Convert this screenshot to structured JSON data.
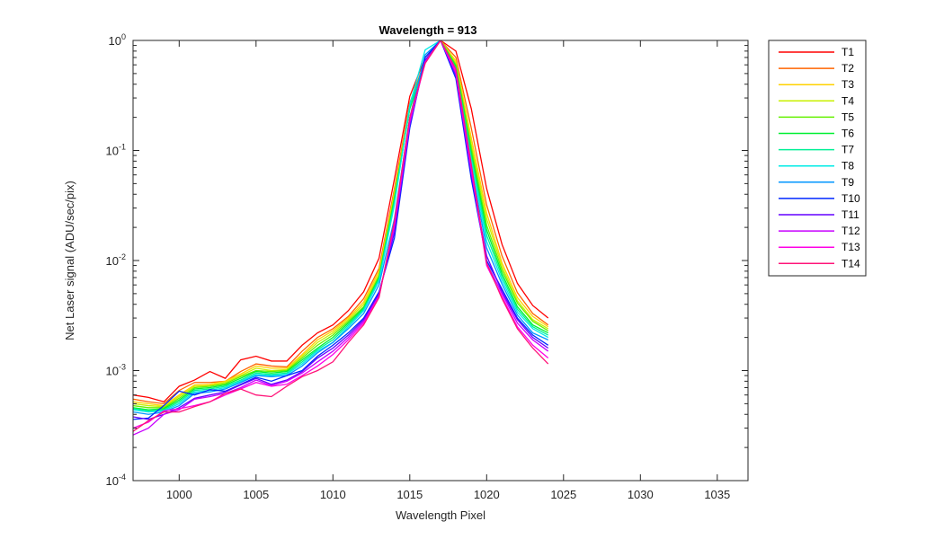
{
  "chart_data": {
    "type": "line",
    "title": "Wavelength = 913",
    "xlabel": "Wavelength Pixel",
    "ylabel": "Net Laser signal  (ADU/sec/pix)",
    "xlim": [
      997,
      1037
    ],
    "ylim": [
      0.0001,
      1
    ],
    "yscale": "log",
    "x_ticks": [
      1000,
      1005,
      1010,
      1015,
      1020,
      1025,
      1030,
      1035
    ],
    "y_ticks": [
      {
        "value": 0.0001,
        "base": "10",
        "exp": "-4"
      },
      {
        "value": 0.001,
        "base": "10",
        "exp": "-3"
      },
      {
        "value": 0.01,
        "base": "10",
        "exp": "-2"
      },
      {
        "value": 0.1,
        "base": "10",
        "exp": "-1"
      },
      {
        "value": 1,
        "base": "10",
        "exp": "0"
      }
    ],
    "grid": false,
    "legend_position": "outside-top-right",
    "x": [
      997,
      998,
      999,
      1000,
      1001,
      1002,
      1003,
      1004,
      1005,
      1006,
      1007,
      1008,
      1009,
      1010,
      1011,
      1012,
      1013,
      1014,
      1015,
      1016,
      1017,
      1018,
      1019,
      1020,
      1021,
      1022,
      1023,
      1024
    ],
    "series": [
      {
        "name": "T1",
        "color": "#ff0000",
        "values": [
          0.0006,
          0.00057,
          0.00052,
          0.00072,
          0.00082,
          0.00098,
          0.00085,
          0.00125,
          0.00135,
          0.00122,
          0.00122,
          0.0017,
          0.0022,
          0.0026,
          0.0035,
          0.0052,
          0.0105,
          0.055,
          0.31,
          0.7,
          1.0,
          0.8,
          0.24,
          0.045,
          0.014,
          0.0062,
          0.0039,
          0.003
        ]
      },
      {
        "name": "T2",
        "color": "#ff6400",
        "values": [
          0.00055,
          0.00052,
          0.0005,
          0.00066,
          0.00078,
          0.00078,
          0.0008,
          0.00098,
          0.00115,
          0.0011,
          0.00108,
          0.0015,
          0.002,
          0.0024,
          0.0031,
          0.0045,
          0.0085,
          0.045,
          0.27,
          0.66,
          1.0,
          0.7,
          0.16,
          0.032,
          0.011,
          0.0051,
          0.0033,
          0.0026
        ]
      },
      {
        "name": "T3",
        "color": "#ffd200",
        "values": [
          0.00052,
          0.0005,
          0.00048,
          0.0006,
          0.00074,
          0.00075,
          0.0008,
          0.00093,
          0.0011,
          0.00105,
          0.00105,
          0.0014,
          0.0019,
          0.0023,
          0.003,
          0.0042,
          0.008,
          0.042,
          0.25,
          0.64,
          1.0,
          0.65,
          0.13,
          0.027,
          0.0095,
          0.0046,
          0.0031,
          0.0025
        ]
      },
      {
        "name": "T4",
        "color": "#c8f000",
        "values": [
          0.0005,
          0.00048,
          0.00047,
          0.00058,
          0.00072,
          0.00073,
          0.00078,
          0.0009,
          0.00105,
          0.001,
          0.00102,
          0.00135,
          0.0018,
          0.0022,
          0.0029,
          0.004,
          0.0075,
          0.04,
          0.24,
          0.63,
          1.0,
          0.62,
          0.115,
          0.024,
          0.0088,
          0.0043,
          0.0029,
          0.0024
        ]
      },
      {
        "name": "T5",
        "color": "#64f000",
        "values": [
          0.00048,
          0.00046,
          0.00046,
          0.00056,
          0.0007,
          0.00072,
          0.00076,
          0.00088,
          0.001,
          0.00098,
          0.001,
          0.0013,
          0.0017,
          0.0021,
          0.0028,
          0.0038,
          0.0072,
          0.038,
          0.24,
          0.63,
          1.0,
          0.6,
          0.105,
          0.021,
          0.0082,
          0.0041,
          0.0028,
          0.0023
        ]
      },
      {
        "name": "T6",
        "color": "#00f032",
        "values": [
          0.00046,
          0.00044,
          0.00045,
          0.00054,
          0.00068,
          0.0007,
          0.00074,
          0.00085,
          0.00098,
          0.00095,
          0.00098,
          0.00125,
          0.0016,
          0.002,
          0.0027,
          0.0037,
          0.007,
          0.036,
          0.24,
          0.64,
          1.0,
          0.58,
          0.095,
          0.019,
          0.0076,
          0.0038,
          0.0026,
          0.0022
        ]
      },
      {
        "name": "T7",
        "color": "#00f096",
        "values": [
          0.00045,
          0.00043,
          0.00044,
          0.00052,
          0.00066,
          0.00068,
          0.00072,
          0.00082,
          0.00095,
          0.00092,
          0.00095,
          0.0012,
          0.00155,
          0.0019,
          0.0026,
          0.0036,
          0.0068,
          0.034,
          0.25,
          0.66,
          1.0,
          0.56,
          0.088,
          0.017,
          0.0071,
          0.0036,
          0.0025,
          0.0021
        ]
      },
      {
        "name": "T8",
        "color": "#00ebe6",
        "values": [
          0.00044,
          0.00042,
          0.00043,
          0.0005,
          0.00064,
          0.00066,
          0.0007,
          0.0008,
          0.00092,
          0.0009,
          0.00093,
          0.00115,
          0.0015,
          0.0018,
          0.0025,
          0.0035,
          0.0065,
          0.032,
          0.26,
          0.82,
          1.0,
          0.52,
          0.08,
          0.015,
          0.0066,
          0.0034,
          0.0024,
          0.002
        ]
      },
      {
        "name": "T9",
        "color": "#0096ff",
        "values": [
          0.00042,
          0.0004,
          0.00042,
          0.00048,
          0.00062,
          0.00064,
          0.00068,
          0.00078,
          0.0009,
          0.00088,
          0.0009,
          0.0011,
          0.00145,
          0.0018,
          0.0024,
          0.0033,
          0.006,
          0.024,
          0.2,
          0.74,
          1.0,
          0.5,
          0.07,
          0.013,
          0.0061,
          0.0032,
          0.0022,
          0.0019
        ]
      },
      {
        "name": "T10",
        "color": "#0028ff",
        "values": [
          0.00036,
          0.00037,
          0.00048,
          0.00065,
          0.0006,
          0.00067,
          0.00065,
          0.00075,
          0.00087,
          0.0008,
          0.0009,
          0.001,
          0.00135,
          0.0017,
          0.0022,
          0.003,
          0.0052,
          0.016,
          0.16,
          0.7,
          1.0,
          0.45,
          0.055,
          0.01,
          0.0055,
          0.003,
          0.0021,
          0.0017
        ]
      },
      {
        "name": "T11",
        "color": "#6400ff",
        "values": [
          0.00038,
          0.00036,
          0.0004,
          0.00046,
          0.00056,
          0.0006,
          0.00064,
          0.00074,
          0.00085,
          0.00075,
          0.00082,
          0.00098,
          0.0013,
          0.0016,
          0.0021,
          0.0029,
          0.005,
          0.018,
          0.17,
          0.66,
          1.0,
          0.48,
          0.06,
          0.011,
          0.0052,
          0.0029,
          0.002,
          0.0016
        ]
      },
      {
        "name": "T12",
        "color": "#c800ff",
        "values": [
          0.00026,
          0.0003,
          0.0004,
          0.00044,
          0.00055,
          0.00058,
          0.00062,
          0.0007,
          0.00082,
          0.00073,
          0.0008,
          0.00095,
          0.0012,
          0.0015,
          0.002,
          0.0028,
          0.0048,
          0.02,
          0.18,
          0.64,
          1.0,
          0.5,
          0.065,
          0.0095,
          0.005,
          0.0027,
          0.0019,
          0.0015
        ]
      },
      {
        "name": "T13",
        "color": "#ff00e6",
        "values": [
          0.0003,
          0.00034,
          0.00043,
          0.00045,
          0.00048,
          0.00052,
          0.0006,
          0.00068,
          0.00078,
          0.00072,
          0.00075,
          0.0009,
          0.0011,
          0.0014,
          0.0019,
          0.0027,
          0.0047,
          0.022,
          0.19,
          0.62,
          1.0,
          0.52,
          0.07,
          0.009,
          0.0047,
          0.0025,
          0.0017,
          0.0013
        ]
      },
      {
        "name": "T14",
        "color": "#ff1478",
        "values": [
          0.00028,
          0.00035,
          0.00042,
          0.00042,
          0.00047,
          0.00052,
          0.00062,
          0.00068,
          0.0006,
          0.00058,
          0.00072,
          0.00088,
          0.001,
          0.0012,
          0.0018,
          0.0026,
          0.0046,
          0.023,
          0.2,
          0.62,
          1.0,
          0.55,
          0.075,
          0.0095,
          0.0045,
          0.0024,
          0.0016,
          0.00115
        ]
      }
    ]
  }
}
